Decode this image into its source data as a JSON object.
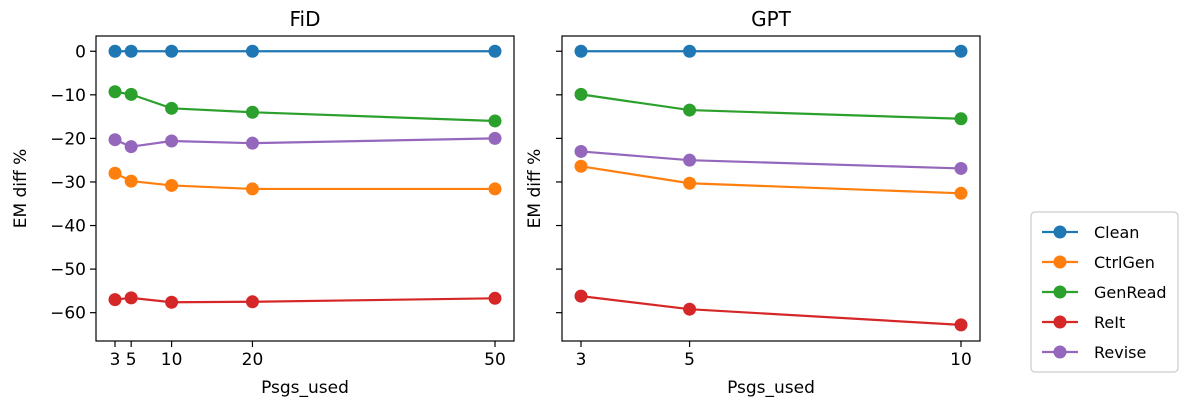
{
  "colors": {
    "Clean": "#1f77b4",
    "CtrlGen": "#ff7f0e",
    "GenRead": "#2ca02c",
    "ReIt": "#d62728",
    "Revise": "#9467bd"
  },
  "legend": {
    "entries": [
      "Clean",
      "CtrlGen",
      "GenRead",
      "ReIt",
      "Revise"
    ]
  },
  "chart_data": [
    {
      "type": "line",
      "title": "FiD",
      "xlabel": "Psgs_used",
      "ylabel": "EM diff %",
      "x": [
        3,
        5,
        10,
        20,
        50
      ],
      "xticks": [
        3,
        5,
        10,
        20,
        50
      ],
      "xlim": [
        0.65,
        52.35
      ],
      "ylim": [
        -66.5,
        3.5
      ],
      "yticks": [
        0,
        -10,
        -20,
        -30,
        -40,
        -50,
        -60
      ],
      "series": [
        {
          "name": "Clean",
          "values": [
            0,
            0,
            0,
            0,
            0
          ]
        },
        {
          "name": "CtrlGen",
          "values": [
            -28.0,
            -29.8,
            -30.8,
            -31.6,
            -31.6
          ]
        },
        {
          "name": "GenRead",
          "values": [
            -9.3,
            -9.9,
            -13.1,
            -14.0,
            -16.0
          ]
        },
        {
          "name": "ReIt",
          "values": [
            -57.0,
            -56.6,
            -57.6,
            -57.5,
            -56.7
          ]
        },
        {
          "name": "Revise",
          "values": [
            -20.3,
            -21.9,
            -20.6,
            -21.1,
            -20.0
          ]
        }
      ]
    },
    {
      "type": "line",
      "title": "GPT",
      "xlabel": "Psgs_used",
      "ylabel": "EM diff %",
      "x": [
        3,
        5,
        10
      ],
      "xticks": [
        3,
        5,
        10
      ],
      "xlim": [
        2.65,
        10.35
      ],
      "ylim": [
        -66.5,
        3.5
      ],
      "yticks": [
        0,
        -10,
        -20,
        -30,
        -40,
        -50,
        -60
      ],
      "series": [
        {
          "name": "Clean",
          "values": [
            0,
            0,
            0
          ]
        },
        {
          "name": "CtrlGen",
          "values": [
            -26.4,
            -30.3,
            -32.6
          ]
        },
        {
          "name": "GenRead",
          "values": [
            -9.9,
            -13.5,
            -15.5
          ]
        },
        {
          "name": "ReIt",
          "values": [
            -56.2,
            -59.2,
            -62.8
          ]
        },
        {
          "name": "Revise",
          "values": [
            -23.0,
            -25.0,
            -26.9
          ]
        }
      ]
    }
  ]
}
